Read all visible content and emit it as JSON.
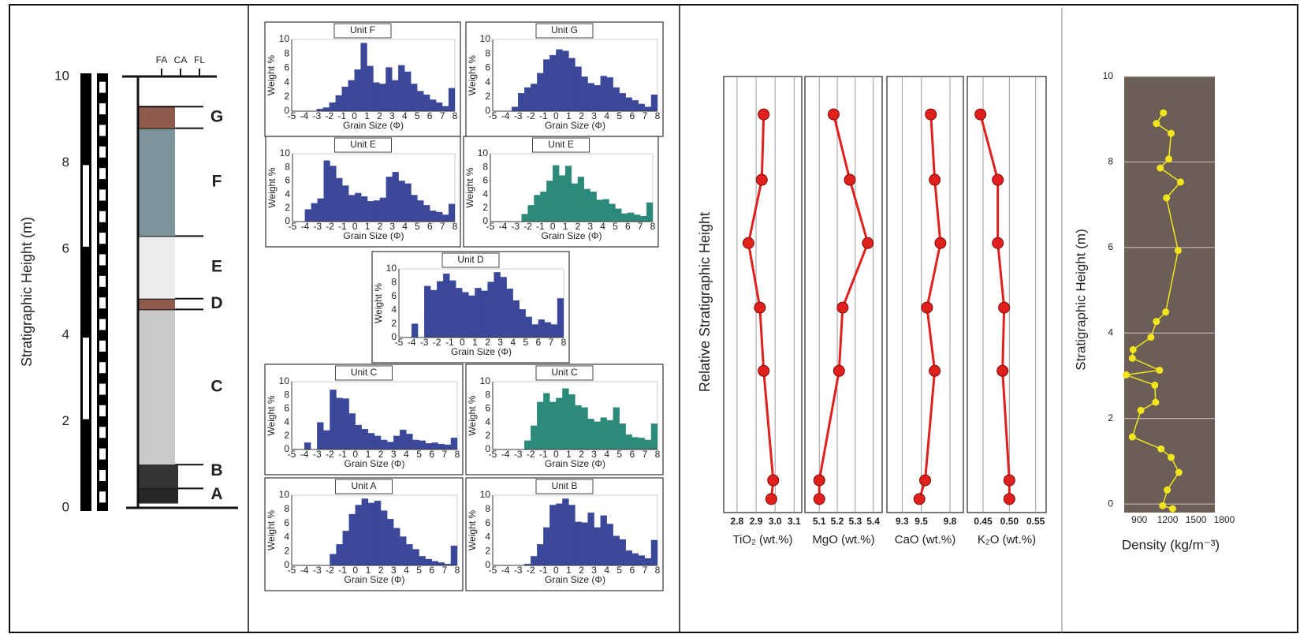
{
  "chart_data": [
    {
      "type": "column",
      "ylabel": "Stratigraphic Height (m)",
      "ylim": [
        0,
        10
      ],
      "yticks": [
        0,
        2,
        4,
        6,
        8,
        10
      ],
      "grain_classes": [
        "FA",
        "CA",
        "FL"
      ],
      "units": [
        {
          "label": "A",
          "bottom": 0.1,
          "top": 0.45,
          "color": "#262626"
        },
        {
          "label": "B",
          "bottom": 0.45,
          "top": 1.0,
          "color": "#333333"
        },
        {
          "label": "C",
          "bottom": 1.0,
          "top": 4.6,
          "color": "#c9c9c9"
        },
        {
          "label": "D",
          "bottom": 4.6,
          "top": 4.85,
          "color": "#8e5a4c"
        },
        {
          "label": "E",
          "bottom": 4.85,
          "top": 6.3,
          "color": "#ececec"
        },
        {
          "label": "F",
          "bottom": 6.3,
          "top": 8.8,
          "color": "#7e949b"
        },
        {
          "label": "G",
          "bottom": 8.8,
          "top": 9.3,
          "color": "#8e5a4c"
        }
      ]
    },
    {
      "type": "histogram",
      "title": "Unit F",
      "xlabel": "Grain Size (Φ)",
      "ylabel": "Weight %",
      "color": "#3b4899",
      "xlim": [
        -5,
        8
      ],
      "ylim": [
        0,
        10
      ],
      "xticks": [
        -5,
        -4,
        -3,
        -2,
        -1,
        0,
        1,
        2,
        3,
        4,
        5,
        6,
        7,
        8
      ],
      "yticks": [
        0,
        2,
        4,
        6,
        8,
        10
      ],
      "bins": [
        -4,
        -3.5,
        -3,
        -2.5,
        -2,
        -1.5,
        -1,
        -0.5,
        0,
        0.5,
        1,
        1.5,
        2,
        2.5,
        3,
        3.5,
        4,
        4.5,
        5,
        5.5,
        6,
        6.5,
        7,
        7.5,
        8
      ],
      "values": [
        0,
        0,
        0.3,
        0.5,
        1.2,
        2.2,
        3.4,
        4.3,
        5.8,
        9.5,
        6.3,
        4,
        3.8,
        6.1,
        4.3,
        6.4,
        5.5,
        3.8,
        2.8,
        2.3,
        1.6,
        1.2,
        0.7,
        3.2
      ]
    },
    {
      "type": "histogram",
      "title": "Unit G",
      "xlabel": "Grain Size (Φ)",
      "ylabel": "Weight %",
      "color": "#3b4899",
      "xlim": [
        -5,
        8
      ],
      "ylim": [
        0,
        10
      ],
      "xticks": [
        -5,
        -4,
        -3,
        -2,
        -1,
        0,
        1,
        2,
        3,
        4,
        5,
        6,
        7,
        8
      ],
      "yticks": [
        0,
        2,
        4,
        6,
        8,
        10
      ],
      "bins": [
        -4,
        -3.5,
        -3,
        -2.5,
        -2,
        -1.5,
        -1,
        -0.5,
        0,
        0.5,
        1,
        1.5,
        2,
        2.5,
        3,
        3.5,
        4,
        4.5,
        5,
        5.5,
        6,
        6.5,
        7,
        7.5,
        8
      ],
      "values": [
        0,
        0.6,
        2.5,
        3.3,
        3.8,
        5.3,
        7.2,
        7.8,
        8.6,
        8.4,
        7.4,
        6.2,
        4.8,
        3.9,
        3.6,
        4.9,
        4.7,
        3.3,
        2.5,
        1.9,
        1.5,
        1,
        0.6,
        2.3
      ]
    },
    {
      "type": "histogram",
      "title": "Unit E",
      "xlabel": "Grain Size (Φ)",
      "ylabel": "Weight %",
      "color": "#3b4899",
      "xlim": [
        -5,
        8
      ],
      "ylim": [
        0,
        10
      ],
      "xticks": [
        -5,
        -4,
        -3,
        -2,
        -1,
        0,
        1,
        2,
        3,
        4,
        5,
        6,
        7,
        8
      ],
      "yticks": [
        0,
        2,
        4,
        6,
        8,
        10
      ],
      "bins": [
        -4,
        -3.5,
        -3,
        -2.5,
        -2,
        -1.5,
        -1,
        -0.5,
        0,
        0.5,
        1,
        1.5,
        2,
        2.5,
        3,
        3.5,
        4,
        4.5,
        5,
        5.5,
        6,
        6.5,
        7,
        7.5,
        8
      ],
      "values": [
        1.8,
        2.7,
        3.4,
        9,
        8.2,
        6.4,
        5.3,
        3.9,
        4.2,
        3.7,
        3,
        3.1,
        3.5,
        6.6,
        7.3,
        6,
        5.6,
        3.9,
        3.1,
        2.4,
        1.6,
        1.4,
        1,
        2.6
      ]
    },
    {
      "type": "histogram",
      "title": "Unit E",
      "xlabel": "Grain Size (Φ)",
      "ylabel": "Weight %",
      "color": "#2c8a7a",
      "xlim": [
        -5,
        8
      ],
      "ylim": [
        0,
        10
      ],
      "xticks": [
        -5,
        -4,
        -3,
        -2,
        -1,
        0,
        1,
        2,
        3,
        4,
        5,
        6,
        7,
        8
      ],
      "yticks": [
        0,
        2,
        4,
        6,
        8,
        10
      ],
      "bins": [
        -4,
        -3.5,
        -3,
        -2.5,
        -2,
        -1.5,
        -1,
        -0.5,
        0,
        0.5,
        1,
        1.5,
        2,
        2.5,
        3,
        3.5,
        4,
        4.5,
        5,
        5.5,
        6,
        6.5,
        7,
        7.5,
        8
      ],
      "values": [
        0,
        0,
        0,
        1.1,
        2.4,
        3.9,
        4.4,
        6,
        8.3,
        6.8,
        8.2,
        5.6,
        6.6,
        4.8,
        4.4,
        3.2,
        3.3,
        2.6,
        1.9,
        1.2,
        1.3,
        1,
        0.8,
        2.8
      ]
    },
    {
      "type": "histogram",
      "title": "Unit D",
      "xlabel": "Grain Size (Φ)",
      "ylabel": "Weight %",
      "color": "#3b4899",
      "xlim": [
        -5,
        8
      ],
      "ylim": [
        0,
        10
      ],
      "xticks": [
        -5,
        -4,
        -3,
        -2,
        -1,
        0,
        1,
        2,
        3,
        4,
        5,
        6,
        7,
        8
      ],
      "yticks": [
        0,
        2,
        4,
        6,
        8,
        10
      ],
      "bins": [
        -4,
        -3.5,
        -3,
        -2.5,
        -2,
        -1.5,
        -1,
        -0.5,
        0,
        0.5,
        1,
        1.5,
        2,
        2.5,
        3,
        3.5,
        4,
        4.5,
        5,
        5.5,
        6,
        6.5,
        7,
        7.5,
        8
      ],
      "values": [
        2,
        0,
        7.5,
        6.9,
        8.2,
        9.3,
        8.3,
        7.2,
        6.6,
        6.1,
        7.2,
        6.8,
        8.1,
        9.5,
        8.8,
        7.1,
        5.4,
        4.1,
        3,
        1.9,
        2.6,
        2.2,
        1.9,
        5.7
      ]
    },
    {
      "type": "histogram",
      "title": "Unit C",
      "xlabel": "Grain Size (Φ)",
      "ylabel": "Weight %",
      "color": "#3b4899",
      "xlim": [
        -5,
        8
      ],
      "ylim": [
        0,
        10
      ],
      "xticks": [
        -5,
        -4,
        -3,
        -2,
        -1,
        0,
        1,
        2,
        3,
        4,
        5,
        6,
        7,
        8
      ],
      "yticks": [
        0,
        2,
        4,
        6,
        8,
        10
      ],
      "bins": [
        -4,
        -3.5,
        -3,
        -2.5,
        -2,
        -1.5,
        -1,
        -0.5,
        0,
        0.5,
        1,
        1.5,
        2,
        2.5,
        3,
        3.5,
        4,
        4.5,
        5,
        5.5,
        6,
        6.5,
        7,
        7.5,
        8
      ],
      "values": [
        1,
        0,
        4,
        2.8,
        8.8,
        7.6,
        7.5,
        5.3,
        3.6,
        3,
        2.4,
        2,
        1.4,
        1.1,
        2,
        2.9,
        2.3,
        1.4,
        1.3,
        0.9,
        1,
        0.8,
        0.7,
        1.7
      ]
    },
    {
      "type": "histogram",
      "title": "Unit C",
      "xlabel": "Grain Size (Φ)",
      "ylabel": "Weight %",
      "color": "#2c8a7a",
      "xlim": [
        -5,
        8
      ],
      "ylim": [
        0,
        10
      ],
      "xticks": [
        -5,
        -4,
        -3,
        -2,
        -1,
        0,
        1,
        2,
        3,
        4,
        5,
        6,
        7,
        8
      ],
      "yticks": [
        0,
        2,
        4,
        6,
        8,
        10
      ],
      "bins": [
        -4,
        -3.5,
        -3,
        -2.5,
        -2,
        -1.5,
        -1,
        -0.5,
        0,
        0.5,
        1,
        1.5,
        2,
        2.5,
        3,
        3.5,
        4,
        4.5,
        5,
        5.5,
        6,
        6.5,
        7,
        7.5,
        8
      ],
      "values": [
        0,
        0,
        0,
        1.3,
        3.5,
        7,
        8.3,
        7,
        7.6,
        9,
        8.1,
        6.5,
        6.2,
        4.5,
        4.1,
        4.7,
        4.3,
        6.2,
        3.8,
        2.2,
        1.8,
        1.7,
        1.4,
        3.8
      ]
    },
    {
      "type": "histogram",
      "title": "Unit A",
      "xlabel": "Grain Size (Φ)",
      "ylabel": "Weight %",
      "color": "#3b4899",
      "xlim": [
        -5,
        8
      ],
      "ylim": [
        0,
        10
      ],
      "xticks": [
        -5,
        -4,
        -3,
        -2,
        -1,
        0,
        1,
        2,
        3,
        4,
        5,
        6,
        7,
        8
      ],
      "yticks": [
        0,
        2,
        4,
        6,
        8,
        10
      ],
      "bins": [
        -4,
        -3.5,
        -3,
        -2.5,
        -2,
        -1.5,
        -1,
        -0.5,
        0,
        0.5,
        1,
        1.5,
        2,
        2.5,
        3,
        3.5,
        4,
        4.5,
        5,
        5.5,
        6,
        6.5,
        7,
        7.5,
        8
      ],
      "values": [
        0,
        0,
        0,
        0,
        1.6,
        3,
        4.9,
        7.3,
        8.6,
        9.5,
        8.9,
        9.2,
        7.8,
        6.6,
        5.3,
        4.1,
        3,
        2.3,
        1.3,
        0.9,
        0.6,
        0.4,
        0.2,
        2.8
      ]
    },
    {
      "type": "histogram",
      "title": "Unit B",
      "xlabel": "Grain Size (Φ)",
      "ylabel": "Weight %",
      "color": "#3b4899",
      "xlim": [
        -5,
        8
      ],
      "ylim": [
        0,
        10
      ],
      "xticks": [
        -5,
        -4,
        -3,
        -2,
        -1,
        0,
        1,
        2,
        3,
        4,
        5,
        6,
        7,
        8
      ],
      "yticks": [
        0,
        2,
        4,
        6,
        8,
        10
      ],
      "bins": [
        -4,
        -3.5,
        -3,
        -2.5,
        -2,
        -1.5,
        -1,
        -0.5,
        0,
        0.5,
        1,
        1.5,
        2,
        2.5,
        3,
        3.5,
        4,
        4.5,
        5,
        5.5,
        6,
        6.5,
        7,
        7.5,
        8
      ],
      "values": [
        0,
        0,
        0,
        0.2,
        1.3,
        3,
        5.4,
        8.6,
        8.8,
        9.5,
        8.6,
        6.2,
        6.1,
        7.5,
        5.4,
        7.1,
        5.9,
        4.2,
        3.7,
        2.1,
        1.7,
        1.4,
        1,
        3.6
      ]
    },
    {
      "type": "profile",
      "ylabel": "Relative Stratigraphic Height",
      "ylim": [
        0,
        10
      ],
      "color": "#e0201c",
      "heights": [
        9.13,
        7.63,
        6.18,
        4.7,
        3.25,
        0.74,
        0.31
      ],
      "panels": [
        {
          "xlabel": "TiO₂ (wt.%)",
          "xlim": [
            2.73,
            3.14
          ],
          "xticks": [
            2.8,
            2.9,
            {
              "value": 3,
              "label": "3.0"
            },
            3.1
          ],
          "values": [
            2.94,
            2.93,
            2.86,
            2.92,
            2.94,
            2.99,
            2.98
          ]
        },
        {
          "xlabel": "MgO (wt.%)",
          "xlim": [
            5.02,
            5.45
          ],
          "xticks": [
            5.1,
            5.2,
            5.3,
            5.4
          ],
          "values": [
            5.18,
            5.27,
            5.37,
            5.23,
            5.21,
            5.1,
            5.1
          ]
        },
        {
          "xlabel": "CaO (wt.%)",
          "xlim": [
            9.14,
            9.94
          ],
          "xticks": [
            9.3,
            9.5,
            9.8
          ],
          "values": [
            9.6,
            9.64,
            9.7,
            9.56,
            9.64,
            9.54,
            9.48
          ]
        },
        {
          "xlabel": "K₂O (wt.%)",
          "xlim": [
            0.42,
            0.57
          ],
          "xticks": [
            0.45,
            {
              "value": 0.5,
              "label": "0.50"
            },
            0.55
          ],
          "values": [
            0.445,
            0.478,
            0.478,
            0.49,
            0.487,
            0.5,
            0.5
          ]
        }
      ]
    },
    {
      "type": "density",
      "xlabel": "Density (kg/m⁻³)",
      "ylabel": "Stratigraphic Height (m)",
      "color": "#f2e51e",
      "background": "#6b5e57",
      "grid": true,
      "xlim": [
        740,
        1700
      ],
      "ylim": [
        -0.2,
        10
      ],
      "xticks": [
        900,
        1200,
        1500,
        1800
      ],
      "yticks": [
        0,
        2,
        4,
        6,
        8,
        10
      ],
      "x": [
        1155,
        1081,
        1237,
        1212,
        1122,
        1336,
        1188,
        1311,
        1180,
        1081,
        1023,
        834,
        826,
        1114,
        760,
        1064,
        1073,
        916,
        826,
        1130,
        1237,
        1319,
        1196,
        1147,
        1253
      ],
      "y": [
        9.15,
        8.9,
        8.67,
        8.07,
        7.86,
        7.53,
        7.16,
        5.93,
        4.49,
        4.27,
        3.9,
        3.61,
        3.41,
        3.13,
        3.02,
        2.78,
        2.38,
        2.19,
        1.57,
        1.29,
        1.09,
        0.74,
        0.33,
        -0.04,
        -0.11
      ]
    }
  ]
}
